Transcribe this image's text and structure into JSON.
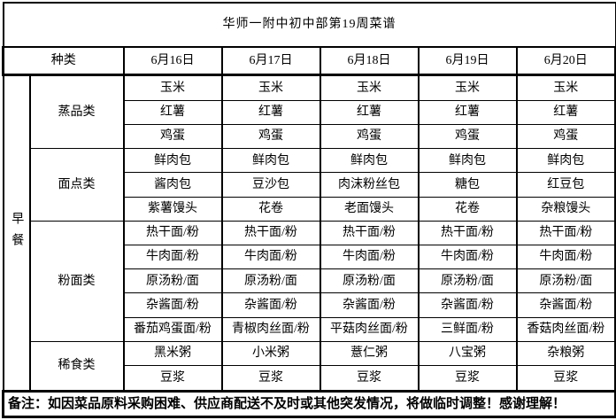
{
  "title": "华师一附中初中部第19周菜谱",
  "header": {
    "category_label": "种类",
    "dates": [
      "6月16日",
      "6月17日",
      "6月18日",
      "6月19日",
      "6月20日"
    ]
  },
  "meal_label": "早餐",
  "sections": [
    {
      "name": "蒸品类",
      "rows": [
        [
          "玉米",
          "玉米",
          "玉米",
          "玉米",
          "玉米"
        ],
        [
          "红薯",
          "红薯",
          "红薯",
          "红薯",
          "红薯"
        ],
        [
          "鸡蛋",
          "鸡蛋",
          "鸡蛋",
          "鸡蛋",
          "鸡蛋"
        ]
      ]
    },
    {
      "name": "面点类",
      "rows": [
        [
          "鲜肉包",
          "鲜肉包",
          "鲜肉包",
          "鲜肉包",
          "鲜肉包"
        ],
        [
          "酱肉包",
          "豆沙包",
          "肉沫粉丝包",
          "糖包",
          "红豆包"
        ],
        [
          "紫薯馒头",
          "花卷",
          "老面馒头",
          "花卷",
          "杂粮馒头"
        ]
      ]
    },
    {
      "name": "粉面类",
      "rows": [
        [
          "热干面/粉",
          "热干面/粉",
          "热干面/粉",
          "热干面/粉",
          "热干面/粉"
        ],
        [
          "牛肉面/粉",
          "牛肉面/粉",
          "牛肉面/粉",
          "牛肉面/粉",
          "牛肉面/粉"
        ],
        [
          "原汤粉/面",
          "原汤粉/面",
          "原汤粉/面",
          "原汤粉/面",
          "原汤粉/面"
        ],
        [
          "杂酱面/粉",
          "杂酱面/粉",
          "杂酱面/粉",
          "杂酱面/粉",
          "杂酱面/粉"
        ],
        [
          "番茄鸡蛋面/粉",
          "青椒肉丝面/粉",
          "平菇肉丝面/粉",
          "三鲜面/粉",
          "香菇肉丝面/粉"
        ]
      ]
    },
    {
      "name": "稀食类",
      "rows": [
        [
          "黑米粥",
          "小米粥",
          "薏仁粥",
          "八宝粥",
          "杂粮粥"
        ],
        [
          "豆浆",
          "豆浆",
          "豆浆",
          "豆浆",
          "豆浆"
        ]
      ]
    }
  ],
  "remark": "备注：如因菜品原料采购困难、供应商配送不及时或其他突发情况，将做临时调整！感谢理解！",
  "colors": {
    "border": "#000000",
    "background": "#ffffff",
    "text": "#000000"
  }
}
